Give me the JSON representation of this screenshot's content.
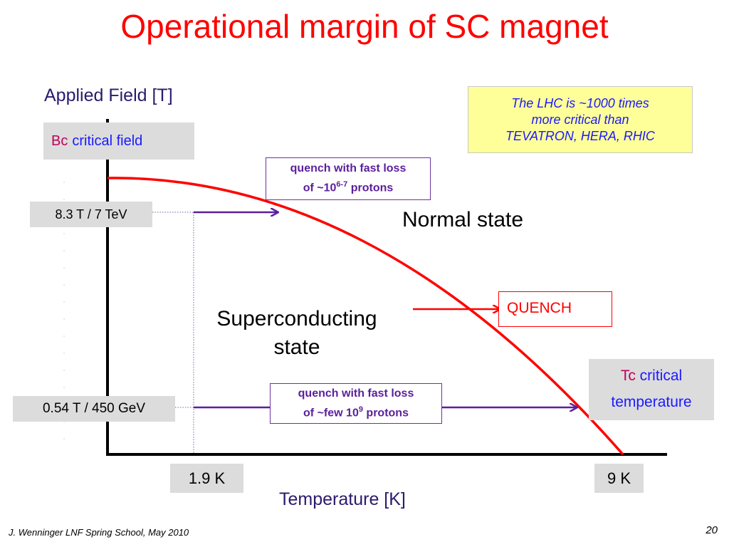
{
  "slide": {
    "title": "Operational margin of SC magnet",
    "footer_author": "J. Wenninger LNF Spring School, May 2010",
    "page_number": "20"
  },
  "axes": {
    "y_label": "Applied Field [T]",
    "x_label": "Temperature [K]"
  },
  "labels": {
    "bc_symbol": "Bc",
    "bc_text": "critical field",
    "field_high": "8.3 T / 7 TeV",
    "field_low": "0.54 T / 450 GeV",
    "temp_low": "1.9 K",
    "temp_high": "9 K",
    "tc_symbol": "Tc",
    "tc_text_1": "critical",
    "tc_text_2": "temperature",
    "normal_state": "Normal state",
    "sc_state_1": "Superconducting",
    "sc_state_2": "state",
    "quench": "QUENCH"
  },
  "note": {
    "line1": "The LHC is ~1000 times",
    "line2": "more critical than",
    "line3": "TEVATRON, HERA, RHIC"
  },
  "quench_top": {
    "line1": "quench with fast loss",
    "line2_prefix": "of ~10",
    "line2_sup": "6-7",
    "line2_suffix": " protons"
  },
  "quench_bottom": {
    "line1": "quench with fast loss",
    "line2_prefix": "of ~few 10",
    "line2_sup": "9",
    "line2_suffix": " protons"
  },
  "colors": {
    "curve": "#ff0000",
    "arrow": "#5b1f9c",
    "title": "#ff0000",
    "axis_text": "#2b1a6b",
    "note_text": "#1a1aff"
  }
}
